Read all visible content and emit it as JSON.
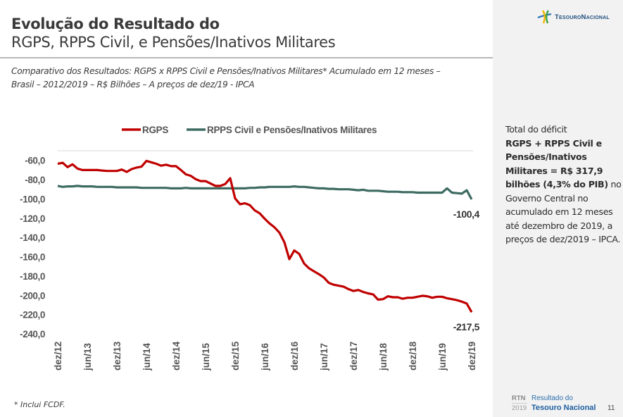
{
  "header": {
    "title_line1": "Evolução do Resultado do",
    "title_line2": "RGPS, RPPS Civil, e Pensões/Inativos Militares",
    "subtitle": "Comparativo dos Resultados: RGPS x RPPS Civil e Pensões/Inativos Militares*  Acumulado em 12 meses – Brasil – 2012/2019 – R$ Bilhões – A preços de dez/19 - IPCA"
  },
  "logo": {
    "icon": "tesouro-nacional-logo-icon",
    "text": "TesouroNacional"
  },
  "sidebar": {
    "line1": "Total do déficit",
    "bold": "RGPS + RPPS Civil e Pensões/Inativos Militares = R$ 317,9 bilhões (4,3% do PIB)",
    "rest": "no Governo Central no acumulado em 12 meses até dezembro de 2019, a preços de dez/2019 – IPCA."
  },
  "footnote": "* Inclui FCDF.",
  "footer": {
    "rtn": "RTN",
    "year": "2019",
    "line1": "Resultado do",
    "line2": "Tesouro Nacional",
    "page": "11"
  },
  "colors": {
    "rgps": "#c00000",
    "rpps": "#3d6b61",
    "grid": "#d9d9d9",
    "sidebar_bg": "#f2f2f2"
  },
  "chart_data": {
    "type": "line",
    "title": "",
    "xlabel": "",
    "ylabel": "R$ Bilhões",
    "ylim": [
      -240,
      -50
    ],
    "yticks": [
      -60,
      -80,
      -100,
      -120,
      -140,
      -160,
      -180,
      -200,
      -220,
      -240
    ],
    "ytick_labels": [
      "-60,0",
      "-80,0",
      "-100,0",
      "-120,0",
      "-140,0",
      "-160,0",
      "-180,0",
      "-200,0",
      "-220,0",
      "-240,0"
    ],
    "x_start": "dez/12",
    "x_end": "dez/19",
    "xtick_labels": [
      "dez/12",
      "jun/13",
      "dez/13",
      "jun/14",
      "dez/14",
      "jun/15",
      "dez/15",
      "jun/16",
      "dez/16",
      "jun/17",
      "dez/17",
      "jun/18",
      "dez/18",
      "jun/19",
      "dez/19"
    ],
    "grid": "top line only",
    "legend": "top",
    "series": [
      {
        "name": "RGPS",
        "color": "#c00000",
        "end_label": "-217,5",
        "values": [
          -63.5,
          -62.5,
          -67,
          -64,
          -68.5,
          -70,
          -70,
          -70,
          -70,
          -70.5,
          -71,
          -71,
          -71,
          -69.5,
          -72,
          -69,
          -67.5,
          -66.5,
          -60.5,
          -62,
          -63.5,
          -65.5,
          -64.5,
          -66,
          -66,
          -70,
          -74.5,
          -76,
          -79.5,
          -81.5,
          -81.5,
          -84,
          -86.5,
          -86.5,
          -84.5,
          -78.5,
          -99.5,
          -105.5,
          -104.5,
          -106.5,
          -112,
          -115,
          -120.5,
          -125.5,
          -129.5,
          -135,
          -145,
          -162.5,
          -153.5,
          -157,
          -167,
          -172,
          -175,
          -178,
          -181.5,
          -187,
          -189,
          -190,
          -191,
          -193.5,
          -195.5,
          -194.5,
          -196.5,
          -198,
          -199,
          -204.5,
          -204,
          -201,
          -202,
          -202,
          -203.5,
          -202.5,
          -202.5,
          -201.5,
          -200.5,
          -201,
          -202.5,
          -201.5,
          -201.5,
          -203,
          -204,
          -205,
          -206.5,
          -208.5,
          -217.5
        ]
      },
      {
        "name": "RPPS Civil e Pensões/Inativos Militares",
        "color": "#3d6b61",
        "end_label": "-100,4",
        "values": [
          -86.5,
          -87.5,
          -87,
          -87,
          -86.5,
          -87,
          -87,
          -87,
          -87.5,
          -87.5,
          -87.5,
          -87.5,
          -88,
          -88,
          -88,
          -88,
          -88,
          -88.5,
          -88.5,
          -88.5,
          -88.5,
          -88.5,
          -88.5,
          -89,
          -89,
          -89,
          -88.5,
          -89,
          -89,
          -89,
          -89,
          -89,
          -89,
          -89,
          -89,
          -89,
          -89,
          -89,
          -89,
          -88.5,
          -88.5,
          -88,
          -88,
          -87.5,
          -87.5,
          -87.5,
          -87.5,
          -87.5,
          -87,
          -87.5,
          -87.5,
          -88,
          -88.5,
          -89,
          -89,
          -89.5,
          -89.5,
          -90,
          -90,
          -90,
          -90.5,
          -91,
          -90.5,
          -91.5,
          -91.5,
          -91.5,
          -92,
          -92.5,
          -92.5,
          -92.5,
          -93,
          -93,
          -93,
          -93.5,
          -93.5,
          -93.5,
          -93.5,
          -93.5,
          -93.5,
          -89,
          -93.5,
          -94,
          -94.5,
          -91,
          -100.4
        ]
      }
    ]
  }
}
